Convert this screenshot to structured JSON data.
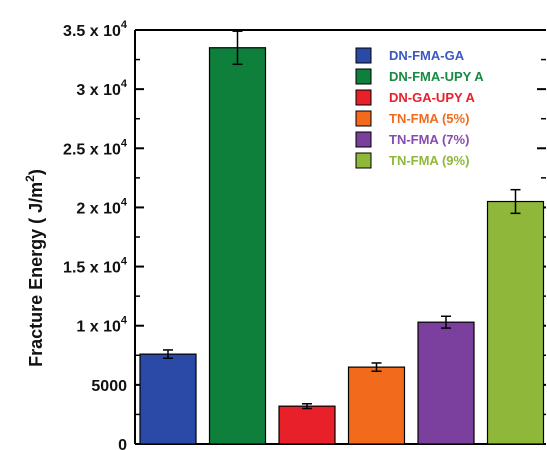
{
  "chart_data": {
    "type": "bar",
    "title": "",
    "xlabel": "",
    "ylabel_main": "Fracture Energy ( J/m",
    "ylabel_sup": "2",
    "ylabel_close": ")",
    "ylim": [
      0,
      35000
    ],
    "yticks": [
      {
        "value": 0,
        "label": "0",
        "sup": ""
      },
      {
        "value": 5000,
        "label": "5000",
        "sup": ""
      },
      {
        "value": 10000,
        "label": "1 x 10",
        "sup": "4"
      },
      {
        "value": 15000,
        "label": "1.5 x 10",
        "sup": "4"
      },
      {
        "value": 20000,
        "label": "2 x 10",
        "sup": "4"
      },
      {
        "value": 25000,
        "label": "2.5 x 10",
        "sup": "4"
      },
      {
        "value": 30000,
        "label": "3 x 10",
        "sup": "4"
      },
      {
        "value": 35000,
        "label": "3.5 x 10",
        "sup": "4"
      }
    ],
    "grid": false,
    "legend_position": "top-right",
    "bars": [
      {
        "name": "DN-FMA-GA",
        "value": 7600,
        "error": 350,
        "color": "#2b4aa8",
        "label_color": "#3a57c4"
      },
      {
        "name": "DN-FMA-UPY A",
        "value": 33500,
        "error": 1400,
        "color": "#0f7f3c",
        "label_color": "#168a42"
      },
      {
        "name": "DN-GA-UPY A",
        "value": 3200,
        "error": 200,
        "color": "#e8202a",
        "label_color": "#e8202a"
      },
      {
        "name": "TN-FMA (5%)",
        "value": 6500,
        "error": 350,
        "color": "#f26b1d",
        "label_color": "#f26b1d"
      },
      {
        "name": "TN-FMA (7%)",
        "value": 10300,
        "error": 500,
        "color": "#7b3f9e",
        "label_color": "#8a4bb0"
      },
      {
        "name": "TN-FMA (9%)",
        "value": 20500,
        "error": 1000,
        "color": "#8fb83a",
        "label_color": "#8fb83a"
      }
    ]
  }
}
